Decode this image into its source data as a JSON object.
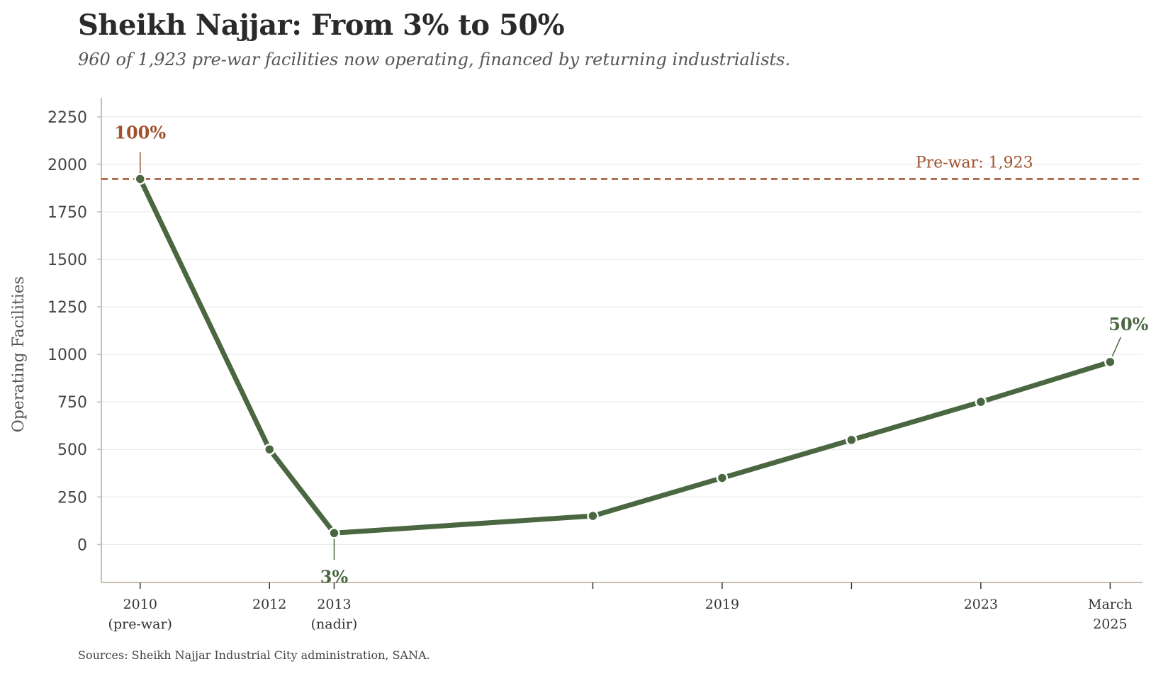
{
  "title": "Sheikh Najjar: From 3% to 50%",
  "subtitle": "960 of 1,923 pre-war facilities now operating, financed by returning industrialists.",
  "source": "Sources: Sheikh Najjar Industrial City administration, SANA.",
  "colors": {
    "line": "#4a6741",
    "reference": "#a0522d",
    "grid": "#e6e6e6",
    "axis": "#c9bfae"
  },
  "chart_data": {
    "type": "line",
    "title": "Sheikh Najjar: From 3% to 50%",
    "xlabel": "",
    "ylabel": "Operating Facilities",
    "ylim": [
      -200,
      2350
    ],
    "xlim": [
      2009.4,
      2025.5
    ],
    "yticks": [
      0,
      250,
      500,
      750,
      1000,
      1250,
      1500,
      1750,
      2000,
      2250
    ],
    "grid": true,
    "series": [
      {
        "name": "Operating Facilities",
        "x": [
          2010,
          2012,
          2013,
          2017,
          2019,
          2021,
          2023,
          2025
        ],
        "values": [
          1923,
          500,
          60,
          150,
          350,
          550,
          750,
          960
        ]
      }
    ],
    "xticks": [
      {
        "x": 2010,
        "lines": [
          "2010",
          "(pre-war)"
        ]
      },
      {
        "x": 2012,
        "lines": [
          "2012"
        ]
      },
      {
        "x": 2013,
        "lines": [
          "2013",
          "(nadir)"
        ]
      },
      {
        "x": 2017,
        "lines": []
      },
      {
        "x": 2019,
        "lines": [
          "2019"
        ]
      },
      {
        "x": 2021,
        "lines": []
      },
      {
        "x": 2023,
        "lines": [
          "2023"
        ]
      },
      {
        "x": 2025,
        "lines": [
          "March",
          "2025"
        ]
      }
    ],
    "reference_line": {
      "value": 1923,
      "label": "Pre-war: 1,923"
    },
    "annotations": [
      {
        "x": 2010,
        "y": 1923,
        "text": "100%",
        "color": "#a0522d",
        "position": "above"
      },
      {
        "x": 2013,
        "y": 60,
        "text": "3%",
        "color": "#4a6741",
        "position": "below"
      },
      {
        "x": 2025,
        "y": 960,
        "text": "50%",
        "color": "#4a6741",
        "position": "above-right"
      }
    ]
  }
}
